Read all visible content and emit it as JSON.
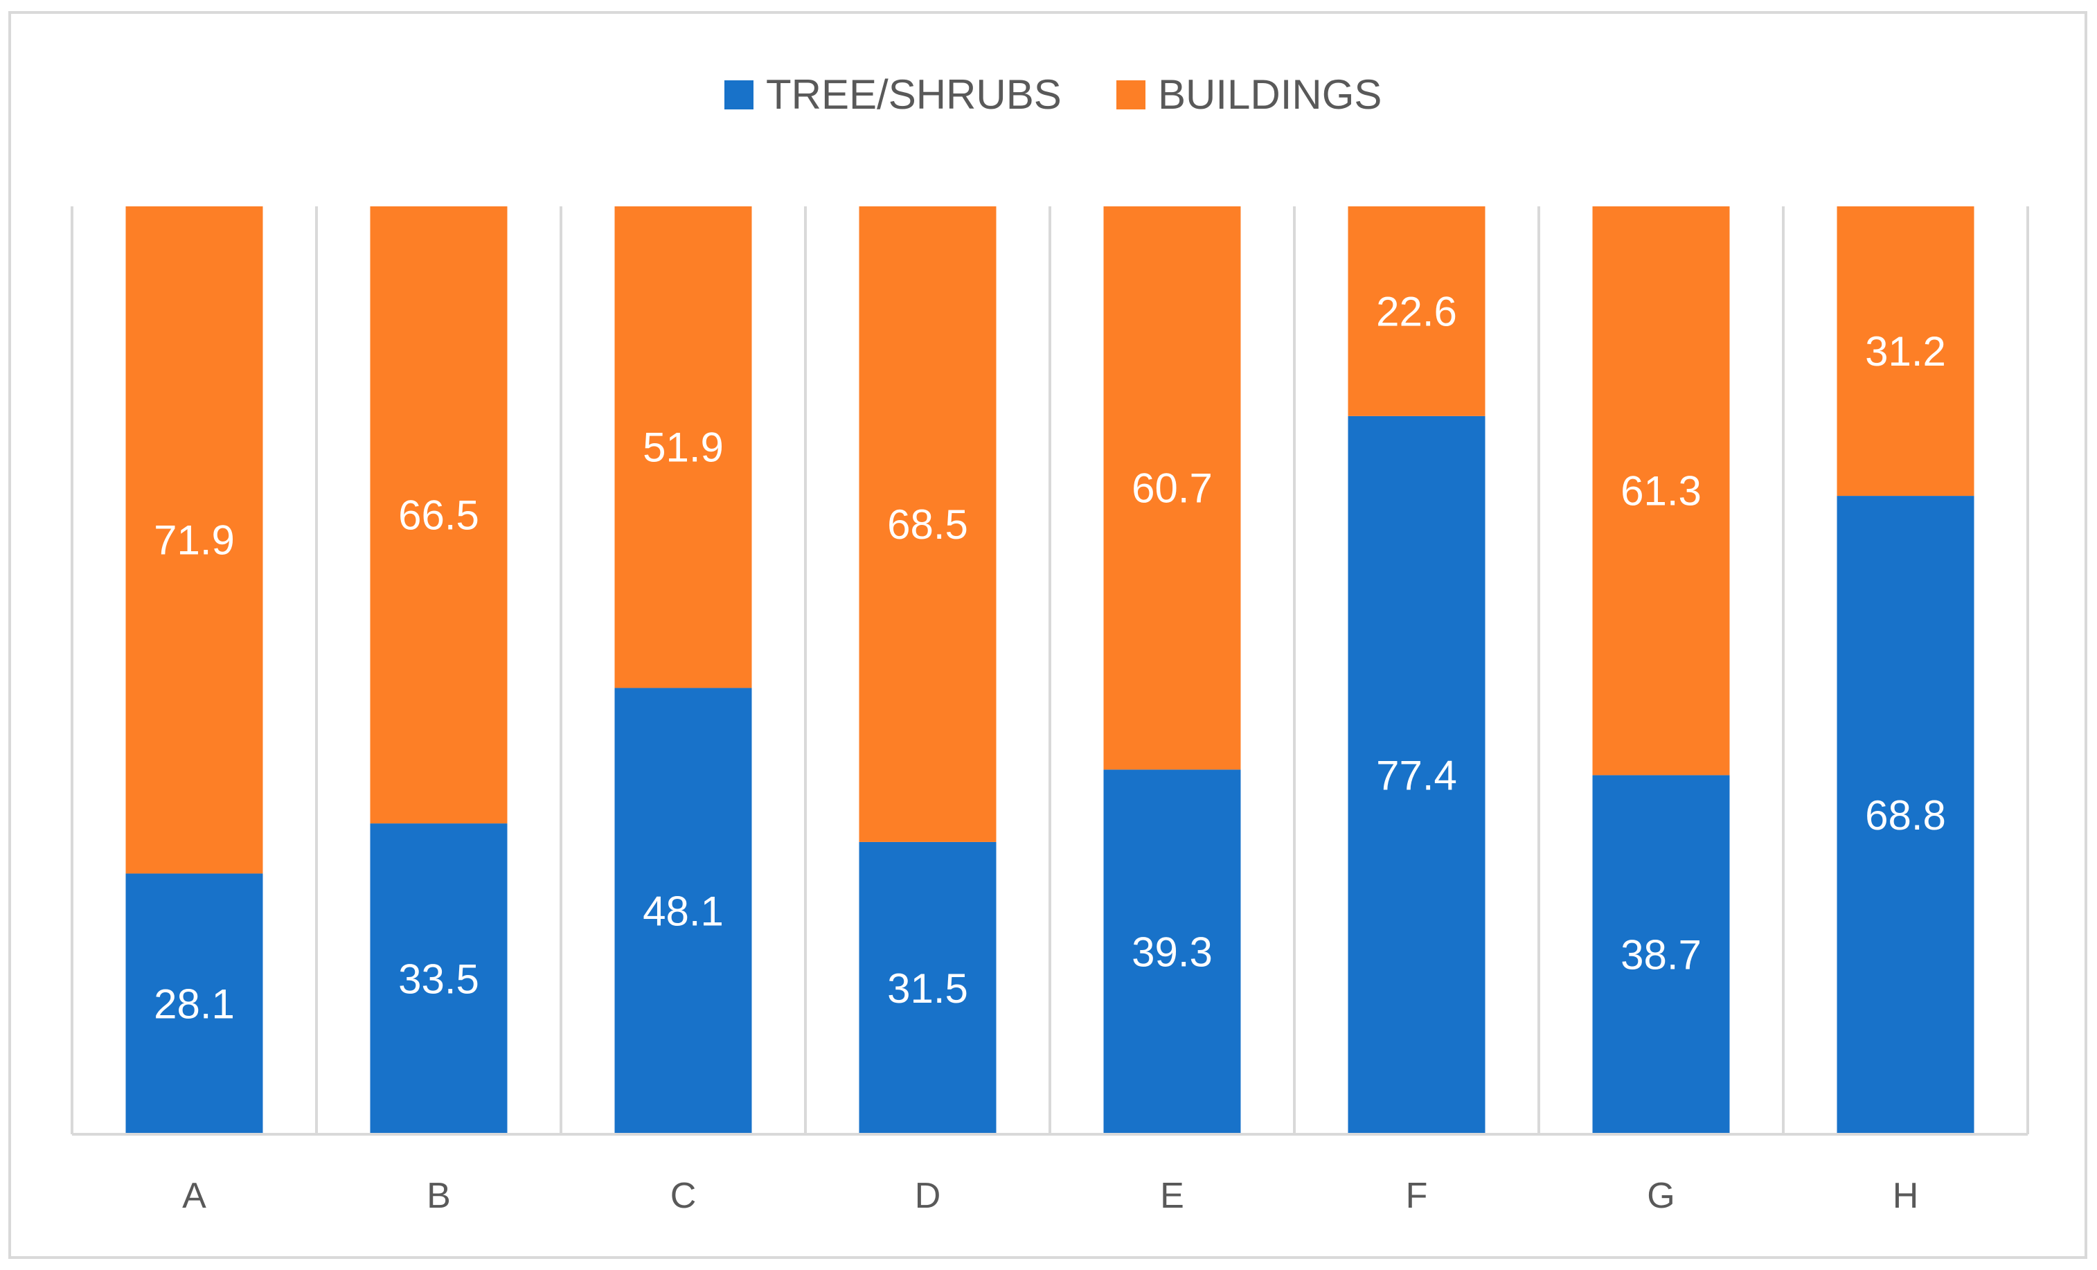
{
  "chart_data": {
    "type": "bar",
    "stacked": true,
    "percent_stacked": true,
    "title": "",
    "xlabel": "",
    "ylabel": "",
    "ylim": [
      0,
      100
    ],
    "categories": [
      "A",
      "B",
      "C",
      "D",
      "E",
      "F",
      "G",
      "H"
    ],
    "series": [
      {
        "name": "TREE/SHRUBS",
        "color": "#1872C9",
        "values": [
          28.1,
          33.5,
          48.1,
          31.5,
          39.3,
          77.4,
          38.7,
          68.8
        ]
      },
      {
        "name": "BUILDINGS",
        "color": "#FD7F26",
        "values": [
          71.9,
          66.5,
          51.9,
          68.5,
          60.7,
          22.6,
          61.3,
          31.2
        ]
      }
    ],
    "legend": "top-center",
    "grid": "vertical-category-dividers",
    "data_labels": true
  }
}
